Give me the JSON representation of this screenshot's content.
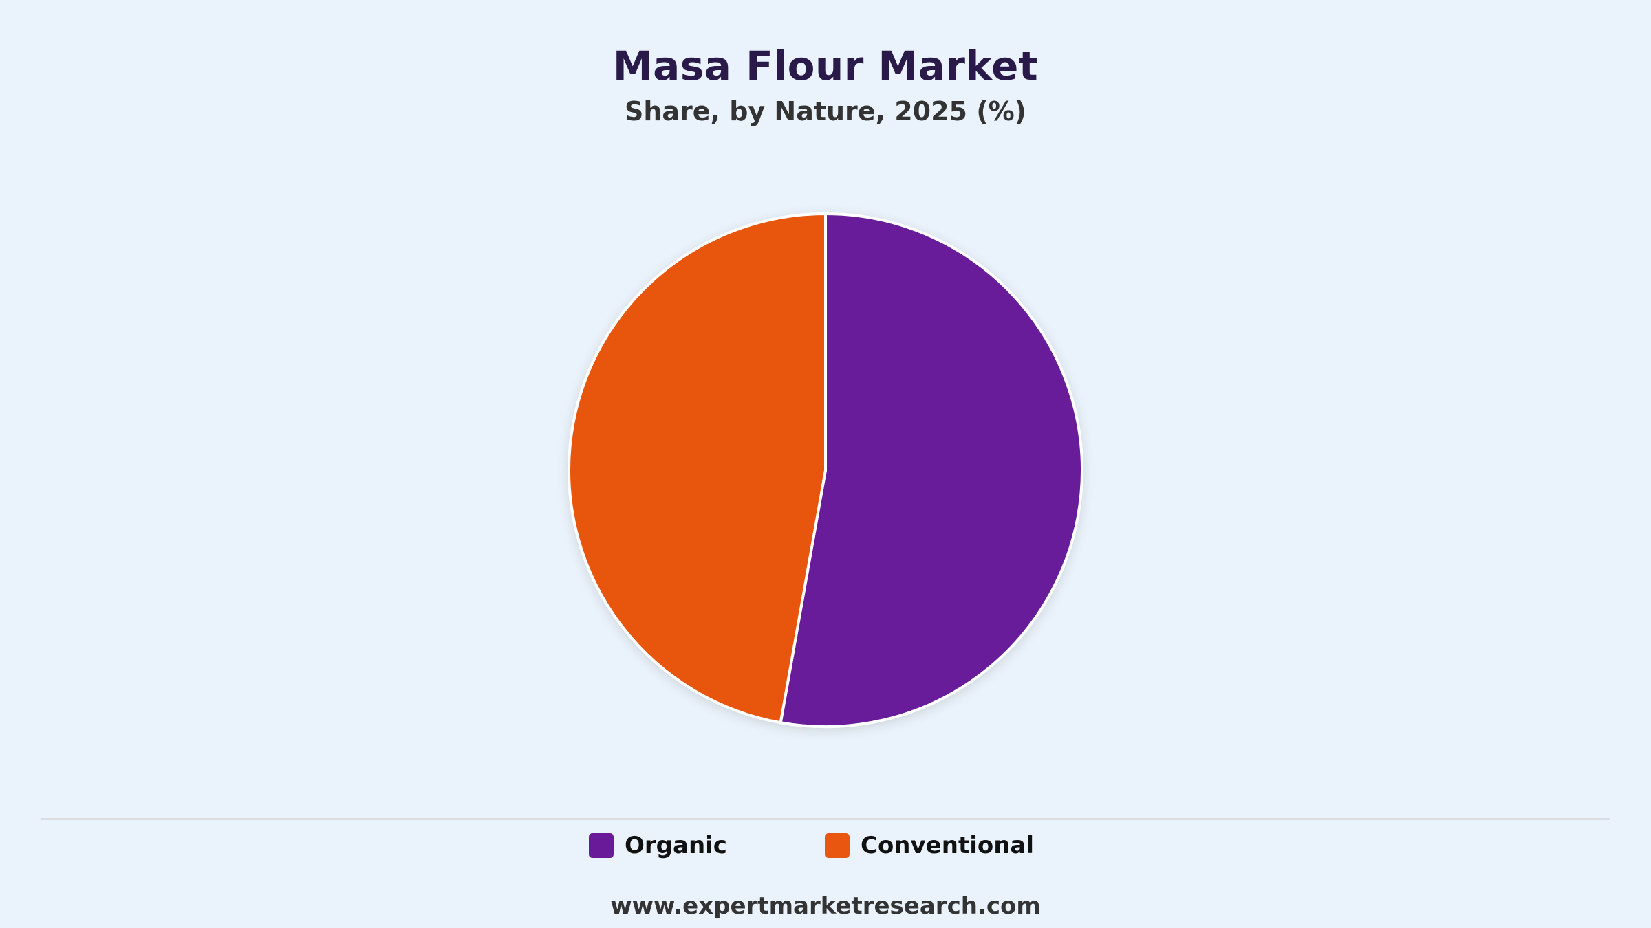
{
  "chart_data": {
    "type": "pie",
    "title": "Masa Flour Market",
    "subtitle": "Share, by Nature, 2025 (%)",
    "slices": [
      {
        "name": "Organic",
        "value": 52.8,
        "color": "#691a99"
      },
      {
        "name": "Conventional",
        "value": 47.2,
        "color": "#e8560f"
      }
    ],
    "legend_position": "bottom"
  },
  "legend": {
    "items": [
      {
        "label": "Organic",
        "color": "#691a99"
      },
      {
        "label": "Conventional",
        "color": "#e8560f"
      }
    ]
  },
  "footer": {
    "source": "www.expertmarketresearch.com"
  }
}
